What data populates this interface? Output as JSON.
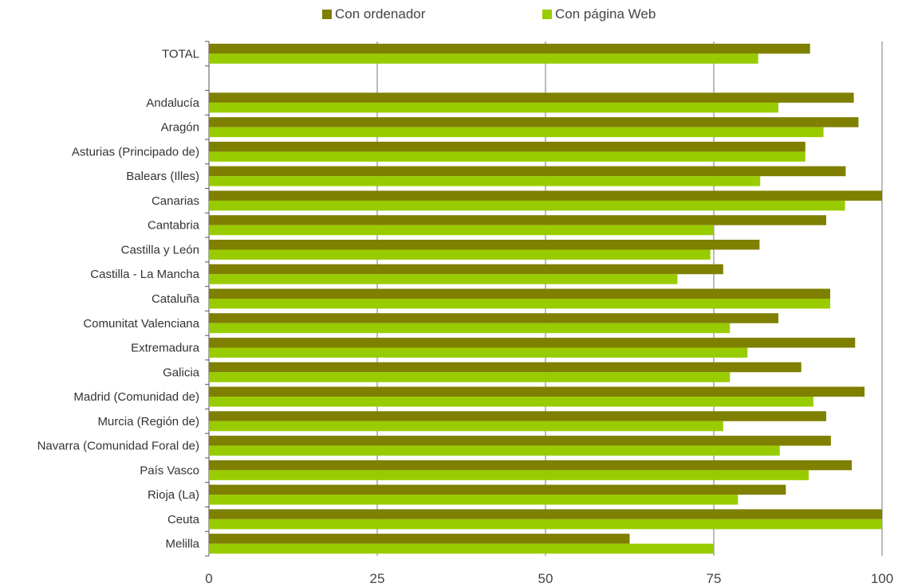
{
  "chart_data": {
    "type": "bar",
    "orientation": "horizontal",
    "categories": [
      "TOTAL",
      "",
      "Andalucía",
      "Aragón",
      "Asturias (Principado de)",
      "Balears (Illes)",
      "Canarias",
      "Cantabria",
      "Castilla y León",
      "Castilla - La Mancha",
      "Cataluña",
      "Comunitat Valenciana",
      "Extremadura",
      "Galicia",
      "Madrid (Comunidad de)",
      "Murcia (Región de)",
      "Navarra (Comunidad Foral de)",
      "País Vasco",
      "Rioja (La)",
      "Ceuta",
      "Melilla"
    ],
    "series": [
      {
        "name": "Con ordenador",
        "color": "#7f7f00",
        "values": [
          89.3,
          null,
          95.8,
          96.5,
          88.6,
          94.6,
          100,
          91.7,
          81.8,
          76.4,
          92.3,
          84.6,
          96,
          88,
          97.4,
          91.7,
          92.4,
          95.5,
          85.7,
          100,
          62.5
        ]
      },
      {
        "name": "Con página Web",
        "color": "#99cc00",
        "values": [
          81.6,
          null,
          84.6,
          91.3,
          88.6,
          81.9,
          94.5,
          75,
          74.5,
          69.6,
          92.3,
          77.4,
          80,
          77.4,
          89.8,
          76.4,
          84.8,
          89.1,
          78.6,
          100,
          75
        ]
      }
    ],
    "x_ticks": [
      "0",
      "25",
      "50",
      "75",
      "100"
    ],
    "xlim": [
      0,
      100
    ],
    "legend_position": "top-center",
    "grid": "vertical"
  }
}
